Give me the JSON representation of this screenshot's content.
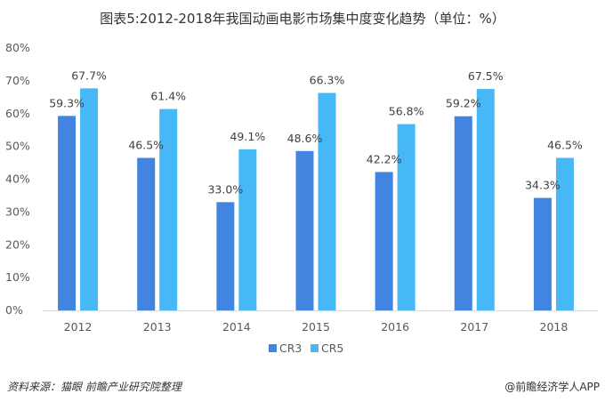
{
  "chart_data": {
    "type": "bar",
    "title": "图表5:2012-2018年我国动画电影市场集中度变化趋势（单位：%）",
    "xlabel": "",
    "ylabel": "",
    "categories": [
      "2012",
      "2013",
      "2014",
      "2015",
      "2016",
      "2017",
      "2018"
    ],
    "series": [
      {
        "name": "CR3",
        "color": "#4285E0",
        "values": [
          59.3,
          46.5,
          33.0,
          48.6,
          42.2,
          59.2,
          34.3
        ],
        "labels": [
          "59.3%",
          "46.5%",
          "33.0%",
          "48.6%",
          "42.2%",
          "59.2%",
          "34.3%"
        ]
      },
      {
        "name": "CR5",
        "color": "#45B8F5",
        "values": [
          67.7,
          61.4,
          49.1,
          66.3,
          56.8,
          67.5,
          46.5
        ],
        "labels": [
          "67.7%",
          "61.4%",
          "49.1%",
          "66.3%",
          "56.8%",
          "67.5%",
          "46.5%"
        ]
      }
    ],
    "ylim": [
      0,
      80
    ],
    "yticks": [
      "0%",
      "10%",
      "20%",
      "30%",
      "40%",
      "50%",
      "60%",
      "70%",
      "80%"
    ],
    "grid": false,
    "legend": "bottom-center"
  },
  "footer": {
    "source": "资料来源：猫眼  前瞻产业研究院整理",
    "credit": "@前瞻经济学人APP"
  }
}
